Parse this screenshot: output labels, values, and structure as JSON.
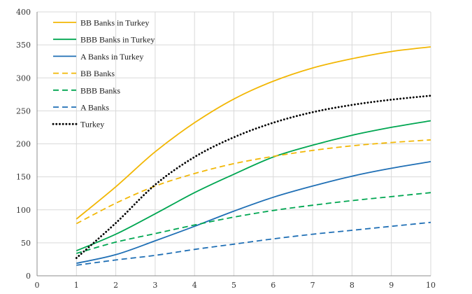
{
  "chart_data": {
    "type": "line",
    "title": "",
    "xlabel": "",
    "ylabel": "",
    "xlim": [
      0,
      10
    ],
    "ylim": [
      0,
      400
    ],
    "x_ticks": [
      0,
      1,
      2,
      3,
      4,
      5,
      6,
      7,
      8,
      9,
      10
    ],
    "y_ticks": [
      0,
      50,
      100,
      150,
      200,
      250,
      300,
      350,
      400
    ],
    "grid": true,
    "legend_position": "top-left",
    "x": [
      1,
      2,
      3,
      4,
      5,
      6,
      7,
      8,
      9,
      10
    ],
    "series": [
      {
        "name": "BB Banks in Turkey",
        "color": "#f2b705",
        "style": "solid",
        "values": [
          86,
          135,
          188,
          232,
          268,
          295,
          315,
          329,
          340,
          347
        ]
      },
      {
        "name": "BBB Banks in Turkey",
        "color": "#00a651",
        "style": "solid",
        "values": [
          38,
          63,
          94,
          126,
          154,
          180,
          198,
          213,
          225,
          235
        ]
      },
      {
        "name": "A Banks in Turkey",
        "color": "#1f6fb5",
        "style": "solid",
        "values": [
          19,
          32,
          53,
          75,
          98,
          119,
          136,
          151,
          163,
          173
        ]
      },
      {
        "name": "BB Banks",
        "color": "#f2b705",
        "style": "dashed",
        "values": [
          79,
          110,
          136,
          155,
          170,
          181,
          190,
          197,
          202,
          206
        ]
      },
      {
        "name": "BBB Banks",
        "color": "#00a651",
        "style": "dashed",
        "values": [
          34,
          51,
          64,
          77,
          89,
          99,
          107,
          114,
          120,
          126
        ]
      },
      {
        "name": "A Banks",
        "color": "#1f6fb5",
        "style": "dashed",
        "values": [
          16,
          24,
          31,
          40,
          48,
          56,
          63,
          69,
          75,
          81
        ]
      },
      {
        "name": "Turkey",
        "color": "#000000",
        "style": "dotted",
        "values": [
          27,
          80,
          138,
          180,
          210,
          232,
          248,
          259,
          267,
          273
        ]
      }
    ]
  }
}
